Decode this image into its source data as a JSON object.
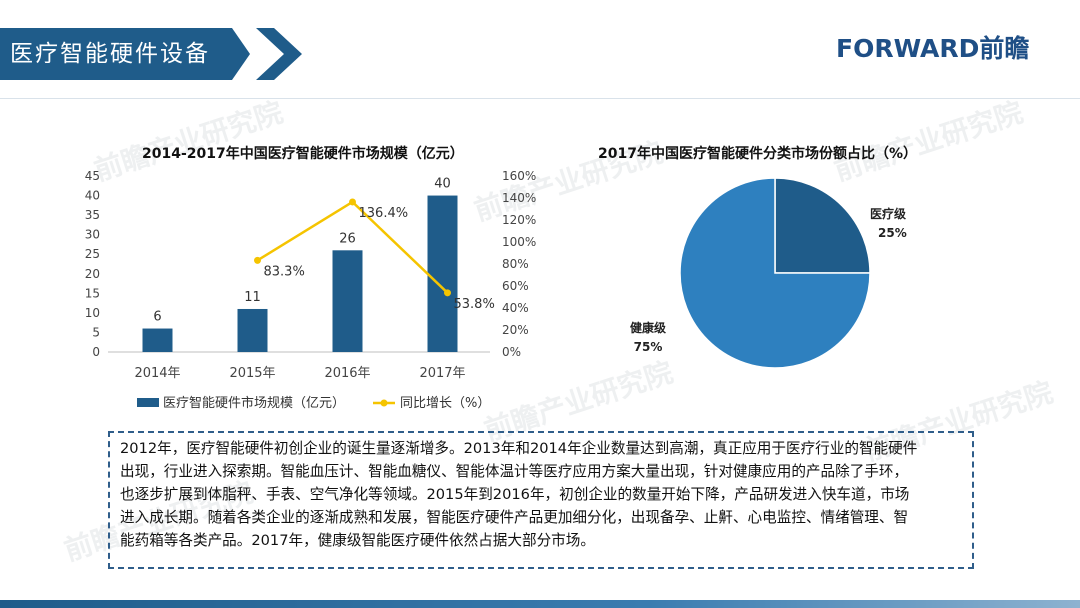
{
  "header": {
    "title": "医疗智能硬件设备",
    "logo": "FORWARD前瞻",
    "accent_color": "#1f5c8a"
  },
  "watermark": "前瞻产业研究院",
  "chart_data": [
    {
      "type": "bar",
      "title": "2014-2017年中国医疗智能硬件市场规模（亿元）",
      "categories": [
        "2014年",
        "2015年",
        "2016年",
        "2017年"
      ],
      "series": [
        {
          "name": "医疗智能硬件市场规模（亿元）",
          "kind": "bar",
          "axis": "left",
          "color": "#1f5c8a",
          "values": [
            6,
            11,
            26,
            40
          ],
          "labels": [
            "6",
            "11",
            "26",
            "40"
          ]
        },
        {
          "name": "同比增长（%）",
          "kind": "line",
          "axis": "right",
          "color": "#f5c400",
          "values": [
            null,
            83.3,
            136.4,
            53.8
          ],
          "labels": [
            "",
            "83.3%",
            "136.4%",
            "53.8%"
          ]
        }
      ],
      "ylim": [
        0,
        45
      ],
      "y_ticks": [
        "0",
        "5",
        "10",
        "15",
        "20",
        "25",
        "30",
        "35",
        "40",
        "45"
      ],
      "y2lim": [
        0,
        160
      ],
      "y2_ticks": [
        "0%",
        "20%",
        "40%",
        "60%",
        "80%",
        "100%",
        "120%",
        "140%",
        "160%"
      ],
      "legend_position": "bottom",
      "grid": false
    },
    {
      "type": "pie",
      "title": "2017年中国医疗智能硬件分类市场份额占比（%）",
      "slices": [
        {
          "label": "医疗级",
          "value": 25,
          "value_label": "25%",
          "color": "#1f5c8a"
        },
        {
          "label": "健康级",
          "value": 75,
          "value_label": "75%",
          "color": "#2e80bf"
        }
      ]
    }
  ],
  "description": [
    "2012年，医疗智能硬件初创企业的诞生量逐渐增多。2013年和2014年企业数量达到高潮，真正应用于医疗行业的智能硬件",
    "出现，行业进入探索期。智能血压计、智能血糖仪、智能体温计等医疗应用方案大量出现，针对健康应用的产品除了手环，",
    "也逐步扩展到体脂秤、手表、空气净化等领域。2015年到2016年，初创企业的数量开始下降，产品研发进入快车道，市场",
    "进入成长期。随着各类企业的逐渐成熟和发展，智能医疗硬件产品更加细分化，出现备孕、止鼾、心电监控、情绪管理、智",
    "能药箱等各类产品。2017年，健康级智能医疗硬件依然占据大部分市场。"
  ]
}
